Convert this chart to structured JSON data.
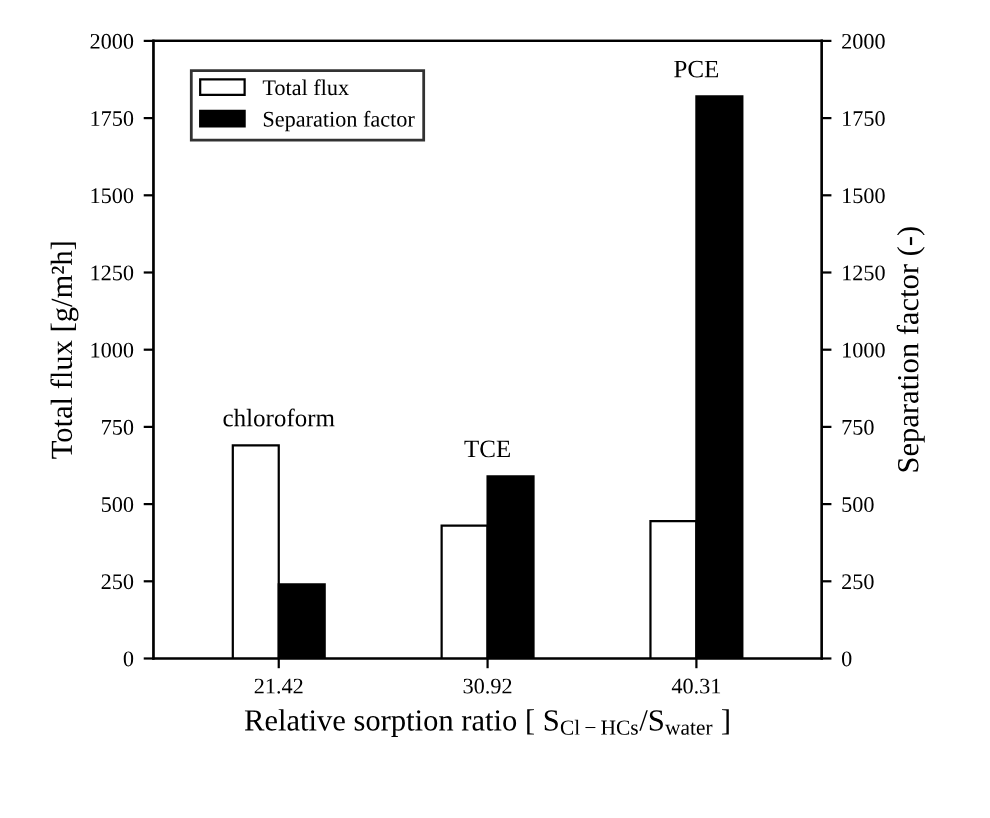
{
  "chart_data": {
    "type": "bar",
    "xlabel": "Relative sorption ratio [ S$_{Cl−HCs}$/S$_{water}$ ]",
    "ylabel": "Total flux [g/m²h]",
    "y2label": "Separation factor (-)",
    "categories": [
      "21.42",
      "30.92",
      "40.31"
    ],
    "series": [
      {
        "name": "Total flux",
        "color": "#ffffff",
        "values": [
          690,
          430,
          445
        ],
        "axis": "y"
      },
      {
        "name": "Separation factor",
        "color": "#000000",
        "values": [
          240,
          590,
          1820
        ],
        "axis": "y2"
      }
    ],
    "ylim": [
      0,
      2000
    ],
    "yticks": [
      0,
      250,
      500,
      750,
      1000,
      1250,
      1500,
      1750,
      2000
    ],
    "y2lim": [
      0,
      2000
    ],
    "y2ticks": [
      0,
      250,
      500,
      750,
      1000,
      1250,
      1500,
      1750,
      2000
    ],
    "annotations": [
      "chloroform",
      "TCE",
      "PCE"
    ],
    "legend": "top left",
    "grid": false
  }
}
